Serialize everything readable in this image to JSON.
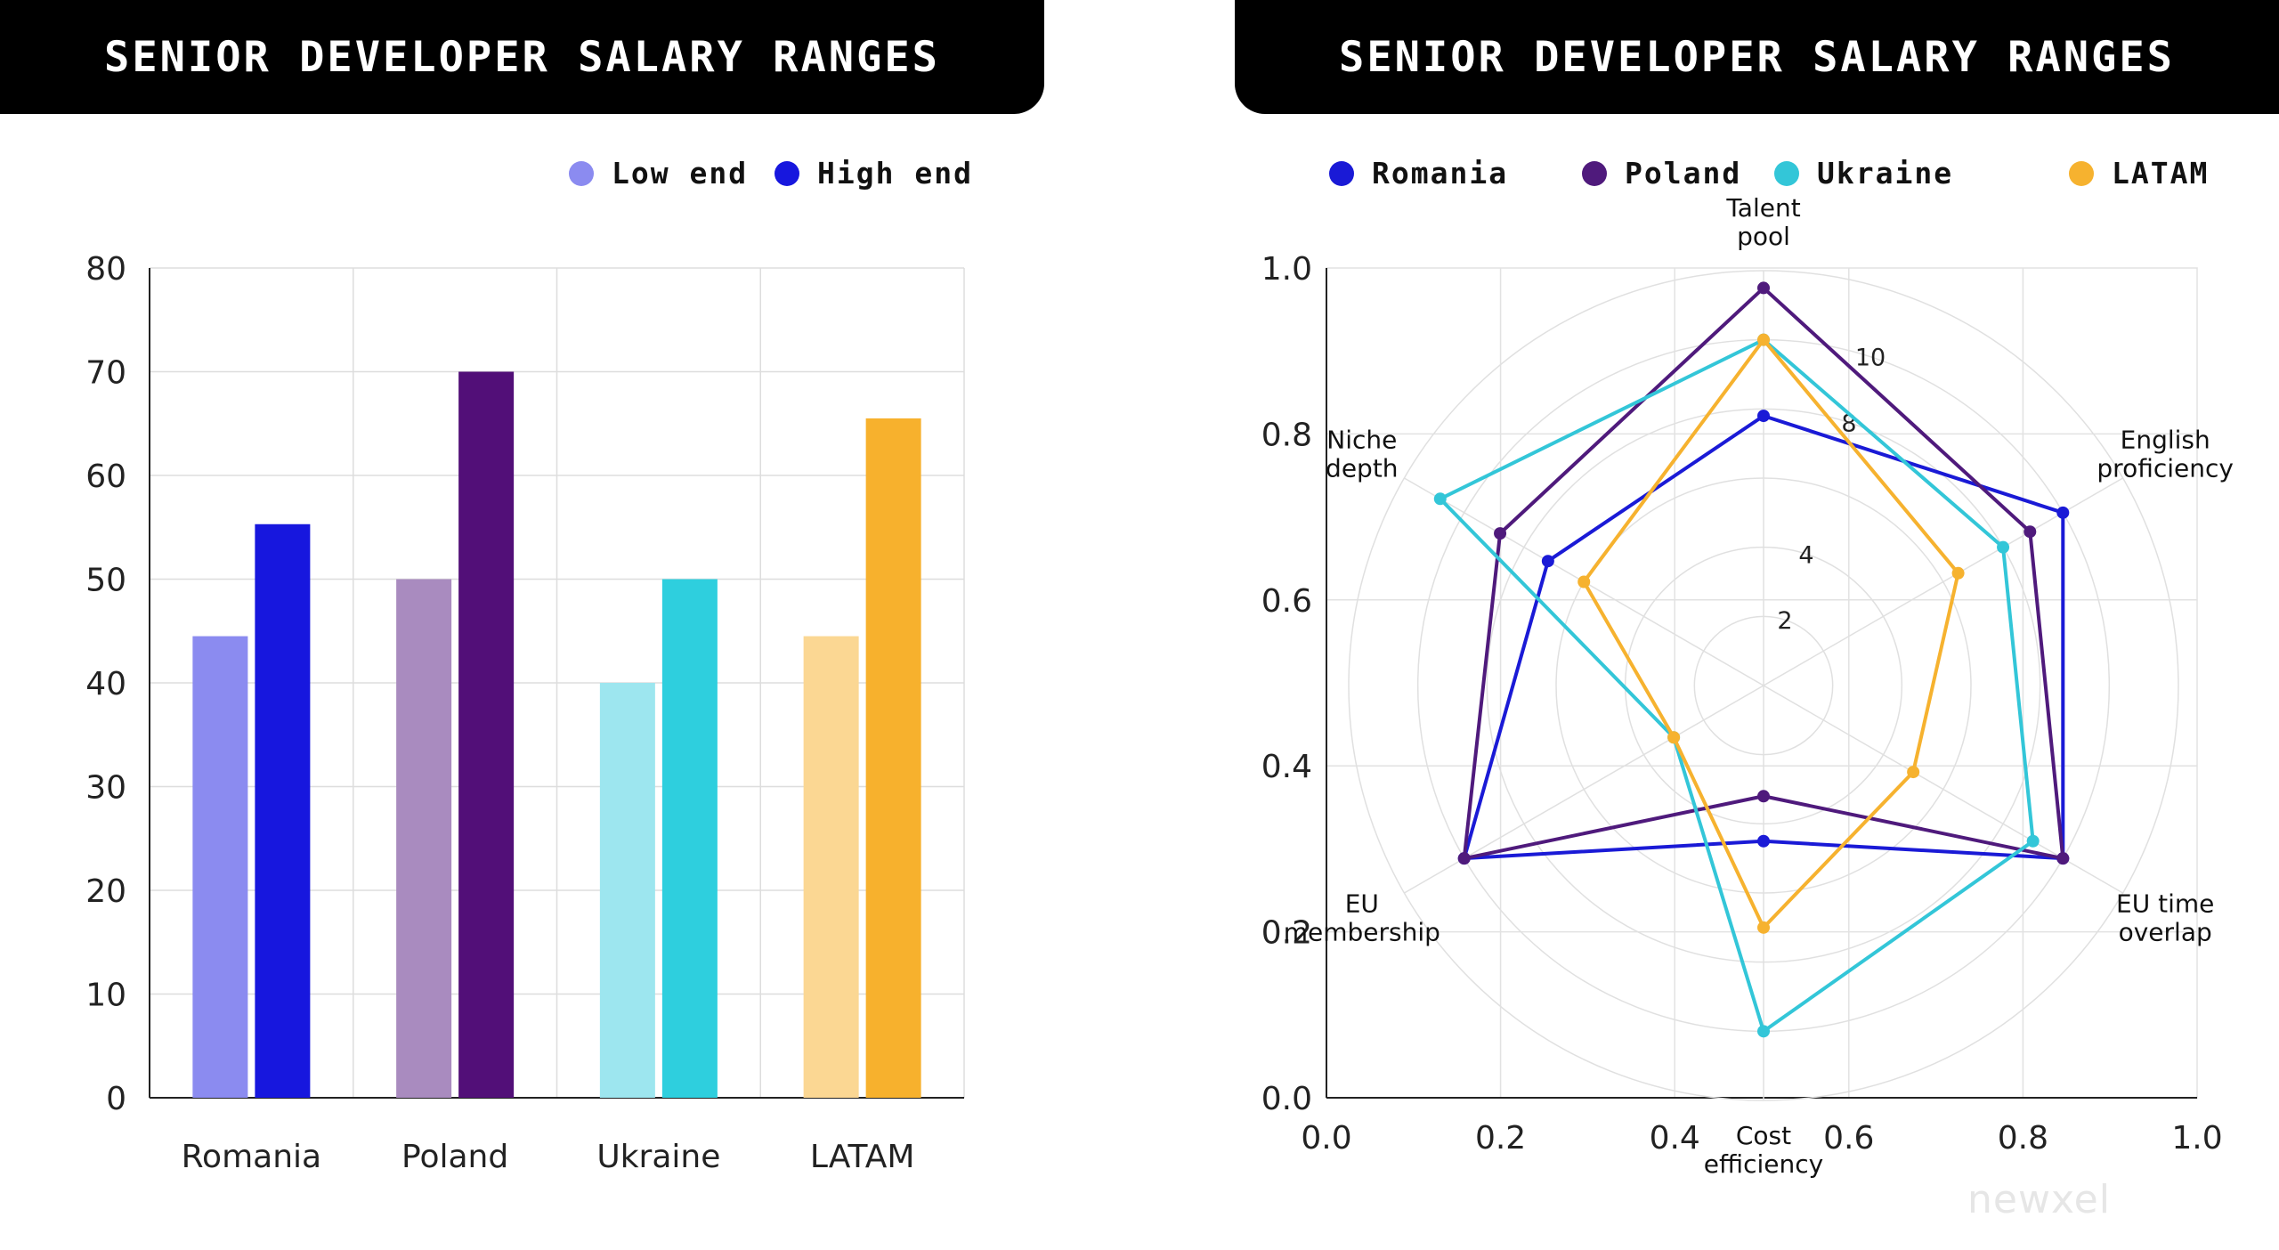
{
  "left_panel": {
    "title": "SENIOR DEVELOPER SALARY RANGES"
  },
  "right_panel": {
    "title": "SENIOR DEVELOPER SALARY RANGES"
  },
  "watermark": "newxel",
  "chart_data": [
    {
      "type": "bar",
      "title": "SENIOR DEVELOPER SALARY RANGES",
      "categories": [
        "Romania",
        "Poland",
        "Ukraine",
        "LATAM"
      ],
      "series": [
        {
          "name": "Low end",
          "values": [
            44.5,
            50,
            40,
            44.5
          ]
        },
        {
          "name": "High end",
          "values": [
            55.3,
            70,
            50,
            65.5
          ]
        }
      ],
      "colors": {
        "low": [
          "#8b8bf0",
          "#a98bbf",
          "#9de6ef",
          "#fbd793"
        ],
        "high": [
          "#1717de",
          "#520f78",
          "#2ecfde",
          "#f7b12d"
        ]
      },
      "legend_colors": [
        "#8b8bf0",
        "#1717de"
      ],
      "ylim": [
        0,
        80
      ],
      "yticks": [
        0,
        10,
        20,
        30,
        40,
        50,
        60,
        70,
        80
      ],
      "grid": true,
      "legend_position": "top-right"
    },
    {
      "type": "radar",
      "title": "SENIOR DEVELOPER SALARY RANGES",
      "axes": [
        "Talent\npool",
        "English\nproficiency",
        "EU time\noverlap",
        "Cost\nefficiency",
        "EU\nmembership",
        "Niche\ndepth"
      ],
      "series": [
        {
          "name": "Romania",
          "color": "#1a1ad6",
          "values": [
            7.8,
            10,
            10,
            4.5,
            10,
            7.2
          ]
        },
        {
          "name": "Poland",
          "color": "#4f1a7c",
          "values": [
            11.5,
            8.9,
            10,
            3.2,
            10,
            8.8
          ]
        },
        {
          "name": "Ukraine",
          "color": "#33c6d8",
          "values": [
            10.0,
            8.0,
            9.0,
            10.0,
            3.0,
            10.8
          ]
        },
        {
          "name": "LATAM",
          "color": "#f6b22f",
          "values": [
            10.0,
            6.5,
            5.0,
            7.0,
            3.0,
            6.0
          ]
        }
      ],
      "radial_ticks": [
        2,
        4,
        8,
        10
      ],
      "radial_max": 12,
      "cartesian_ticks_x": [
        "0.0",
        "0.2",
        "0.4",
        "0.6",
        "0.8",
        "1.0"
      ],
      "cartesian_ticks_y": [
        "0.0",
        "0.2",
        "0.4",
        "0.6",
        "0.8",
        "1.0"
      ],
      "legend_position": "top"
    }
  ]
}
